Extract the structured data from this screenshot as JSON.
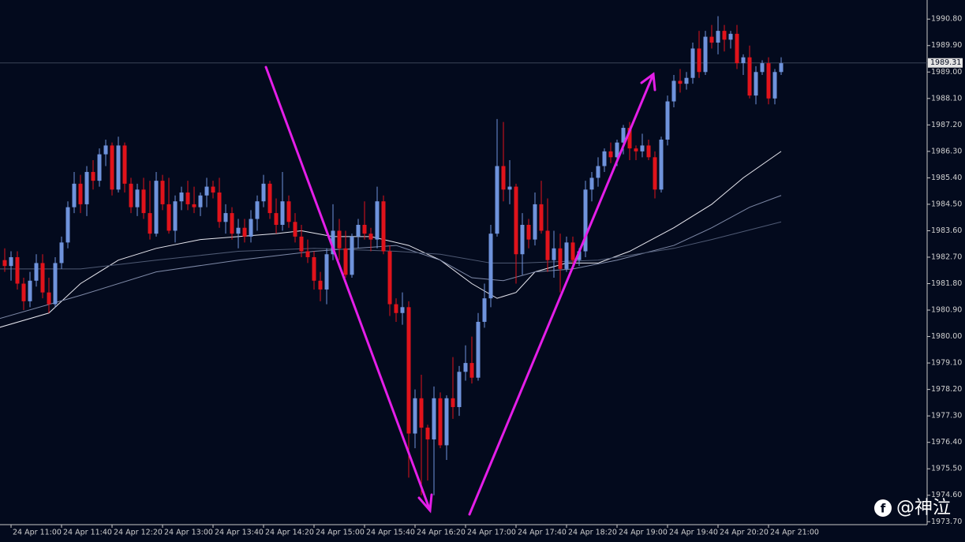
{
  "chart_data": {
    "type": "candlestick",
    "up_color": "#6f93dc",
    "down_color": "#e0131b",
    "categories": [
      null,
      "24 Apr 11:00",
      null,
      null,
      null,
      null,
      null,
      null,
      null,
      "24 Apr 11:40",
      null,
      null,
      null,
      null,
      null,
      null,
      null,
      "24 Apr 12:20",
      null,
      null,
      null,
      null,
      null,
      null,
      null,
      "24 Apr 13:00",
      null,
      null,
      null,
      null,
      null,
      null,
      null,
      "24 Apr 13:40",
      null,
      null,
      null,
      null,
      null,
      null,
      null,
      "24 Apr 14:20",
      null,
      null,
      null,
      null,
      null,
      null,
      null,
      "24 Apr 15:00",
      null,
      null,
      null,
      null,
      null,
      null,
      null,
      "24 Apr 15:40",
      null,
      null,
      null,
      null,
      null,
      null,
      null,
      "24 Apr 16:20",
      null,
      null,
      null,
      null,
      null,
      null,
      null,
      "24 Apr 17:00",
      null,
      null,
      null,
      null,
      null,
      null,
      null,
      "24 Apr 17:40",
      null,
      null,
      null,
      null,
      null,
      null,
      null,
      "24 Apr 18:20",
      null,
      null,
      null,
      null,
      null,
      null,
      null,
      "24 Apr 19:00",
      null,
      null,
      null,
      null,
      null,
      null,
      null,
      "24 Apr 19:40",
      null,
      null,
      null,
      null,
      null,
      null,
      null,
      "24 Apr 20:20",
      null,
      null,
      null,
      null,
      null,
      null,
      null,
      "24 Apr 21:00",
      null,
      null
    ],
    "open": [
      1982.6,
      1982.4,
      1982.7,
      1981.8,
      1981.2,
      1981.9,
      1982.5,
      1981.5,
      1981.1,
      1982.5,
      1983.2,
      1984.4,
      1985.2,
      1984.5,
      1985.6,
      1985.3,
      1986.2,
      1986.5,
      1985.0,
      1986.5,
      1985.2,
      1984.4,
      1985.0,
      1984.2,
      1983.5,
      1985.3,
      1984.5,
      1983.6,
      1984.6,
      1984.9,
      1984.5,
      1984.4,
      1984.8,
      1985.1,
      1984.9,
      1983.9,
      1984.2,
      1983.5,
      1983.7,
      1983.4,
      1984.0,
      1984.6,
      1985.2,
      1984.2,
      1983.8,
      1984.6,
      1983.9,
      1983.4,
      1982.9,
      1982.7,
      1981.9,
      1981.6,
      1982.8,
      1983.6,
      1983.0,
      1982.1,
      1983.4,
      1983.8,
      1983.5,
      1983.3,
      1984.6,
      1982.9,
      1981.1,
      1980.8,
      1981.0,
      1976.7,
      1977.9,
      1976.9,
      1976.5,
      1977.9,
      1976.3,
      1977.9,
      1977.6,
      1978.8,
      1979.1,
      1978.6,
      1980.5,
      1981.3,
      1983.5,
      1985.8,
      1985.0,
      1985.1,
      1982.8,
      1983.8,
      1983.3,
      1984.5,
      1983.6,
      1982.6,
      1983.0,
      1982.3,
      1983.2,
      1982.6,
      1982.9,
      1985.0,
      1985.4,
      1985.8,
      1986.3,
      1986.1,
      1986.6,
      1987.1,
      1986.4,
      1986.3,
      1986.5,
      1986.1,
      1985.0,
      1986.7,
      1988.0,
      1988.7,
      1988.6,
      1988.8,
      1989.8,
      1989.0,
      1990.2,
      1990.0,
      1990.4,
      1990.1,
      1990.3,
      1989.3,
      1989.5,
      1988.2,
      1989.0,
      1989.3,
      1988.1,
      1989.0
    ],
    "high": [
      1983.0,
      1982.9,
      1982.9,
      1982.0,
      1982.2,
      1982.8,
      1982.8,
      1982.0,
      1982.7,
      1983.4,
      1984.6,
      1985.6,
      1985.5,
      1985.8,
      1986.0,
      1986.4,
      1986.7,
      1986.6,
      1986.8,
      1986.6,
      1985.4,
      1985.2,
      1985.4,
      1985.3,
      1985.6,
      1985.5,
      1985.4,
      1984.8,
      1985.1,
      1985.3,
      1985.1,
      1984.9,
      1985.4,
      1985.3,
      1985.4,
      1984.5,
      1984.4,
      1984.0,
      1984.0,
      1984.3,
      1984.8,
      1985.5,
      1985.3,
      1984.7,
      1985.6,
      1984.8,
      1984.2,
      1983.8,
      1983.3,
      1982.9,
      1982.2,
      1983.0,
      1984.5,
      1984.0,
      1983.6,
      1983.5,
      1984.0,
      1984.6,
      1983.7,
      1985.1,
      1984.8,
      1983.1,
      1981.3,
      1981.5,
      1981.2,
      1978.2,
      1978.7,
      1977.0,
      1978.3,
      1978.1,
      1978.0,
      1979.3,
      1979.0,
      1979.7,
      1980.0,
      1980.8,
      1981.8,
      1983.8,
      1987.4,
      1987.3,
      1986.0,
      1985.2,
      1984.2,
      1984.0,
      1984.9,
      1985.3,
      1984.7,
      1983.6,
      1983.5,
      1983.4,
      1983.4,
      1983.0,
      1985.3,
      1985.6,
      1986.1,
      1986.4,
      1986.6,
      1986.7,
      1987.2,
      1987.3,
      1986.5,
      1986.9,
      1986.7,
      1986.3,
      1986.8,
      1988.2,
      1988.9,
      1989.1,
      1989.0,
      1990.0,
      1990.4,
      1990.4,
      1990.6,
      1990.9,
      1990.6,
      1990.4,
      1990.6,
      1989.6,
      1989.9,
      1989.2,
      1989.4,
      1989.5,
      1989.1,
      1989.5
    ],
    "low": [
      1982.2,
      1981.9,
      1981.6,
      1980.9,
      1981.0,
      1981.7,
      1981.3,
      1980.8,
      1981.0,
      1982.3,
      1983.0,
      1984.2,
      1984.2,
      1984.1,
      1985.0,
      1985.1,
      1985.8,
      1984.8,
      1984.9,
      1984.9,
      1984.2,
      1984.1,
      1984.0,
      1983.3,
      1983.4,
      1984.3,
      1983.5,
      1983.2,
      1984.3,
      1984.3,
      1984.2,
      1984.1,
      1984.4,
      1984.7,
      1983.7,
      1983.5,
      1983.3,
      1983.0,
      1983.2,
      1983.2,
      1983.6,
      1984.4,
      1984.0,
      1983.5,
      1983.6,
      1983.7,
      1983.2,
      1982.7,
      1982.5,
      1981.6,
      1981.2,
      1981.1,
      1982.6,
      1982.6,
      1982.0,
      1982.0,
      1983.0,
      1983.3,
      1982.9,
      1983.0,
      1982.8,
      1980.7,
      1980.5,
      1980.4,
      1975.2,
      1976.2,
      1974.6,
      1975.1,
      1974.6,
      1976.2,
      1975.8,
      1977.2,
      1977.3,
      1978.5,
      1978.4,
      1978.5,
      1980.3,
      1981.0,
      1983.4,
      1984.6,
      1984.5,
      1981.8,
      1982.1,
      1983.0,
      1983.1,
      1983.5,
      1982.2,
      1982.0,
      1981.5,
      1982.2,
      1982.3,
      1982.4,
      1982.7,
      1984.6,
      1985.1,
      1985.6,
      1985.9,
      1985.8,
      1986.2,
      1986.0,
      1986.0,
      1986.1,
      1986.0,
      1984.7,
      1984.9,
      1986.5,
      1987.8,
      1988.3,
      1988.4,
      1988.6,
      1988.8,
      1988.9,
      1989.8,
      1989.6,
      1989.7,
      1989.8,
      1989.1,
      1988.9,
      1988.1,
      1987.9,
      1988.9,
      1987.9,
      1987.9,
      1988.9
    ],
    "close": [
      1982.4,
      1982.7,
      1981.8,
      1981.2,
      1981.9,
      1982.5,
      1981.5,
      1981.1,
      1982.5,
      1983.2,
      1984.4,
      1985.2,
      1984.5,
      1985.6,
      1985.3,
      1986.2,
      1986.5,
      1985.0,
      1986.5,
      1985.2,
      1984.4,
      1985.0,
      1984.2,
      1983.5,
      1985.3,
      1984.5,
      1983.6,
      1984.6,
      1984.9,
      1984.5,
      1984.4,
      1984.8,
      1985.1,
      1984.9,
      1983.9,
      1984.2,
      1983.5,
      1983.7,
      1983.4,
      1984.0,
      1984.6,
      1985.2,
      1984.2,
      1983.8,
      1984.6,
      1983.9,
      1983.4,
      1982.9,
      1982.7,
      1981.9,
      1981.6,
      1982.8,
      1983.6,
      1983.0,
      1982.1,
      1983.4,
      1983.8,
      1983.5,
      1983.3,
      1984.6,
      1982.9,
      1981.1,
      1980.8,
      1981.0,
      1976.7,
      1977.9,
      1976.9,
      1976.5,
      1977.9,
      1976.3,
      1977.9,
      1977.6,
      1978.8,
      1979.1,
      1978.6,
      1980.5,
      1981.3,
      1983.5,
      1985.8,
      1985.0,
      1985.1,
      1982.8,
      1983.8,
      1983.3,
      1984.5,
      1983.6,
      1982.6,
      1983.0,
      1982.3,
      1983.2,
      1982.6,
      1982.9,
      1985.0,
      1985.4,
      1985.8,
      1986.3,
      1986.1,
      1986.6,
      1987.1,
      1986.4,
      1986.3,
      1986.5,
      1986.1,
      1985.0,
      1986.7,
      1988.0,
      1988.7,
      1988.6,
      1988.8,
      1989.8,
      1989.0,
      1990.2,
      1990.0,
      1990.4,
      1990.1,
      1990.3,
      1989.3,
      1989.5,
      1988.2,
      1989.0,
      1989.3,
      1988.1,
      1989.0,
      1989.3
    ],
    "lines": [
      {
        "color": "#e8e8f0",
        "x": [
          -1,
          7,
          12,
          18,
          24,
          31,
          37,
          43,
          47,
          52,
          58,
          64,
          69,
          74,
          78,
          81,
          84,
          89,
          94,
          99,
          106,
          112,
          117,
          123
        ],
        "values": [
          1980.3,
          1980.8,
          1981.8,
          1982.6,
          1983.0,
          1983.3,
          1983.4,
          1983.5,
          1983.6,
          1983.4,
          1983.4,
          1983.1,
          1982.6,
          1981.8,
          1981.3,
          1981.5,
          1982.2,
          1982.5,
          1982.5,
          1982.9,
          1983.7,
          1984.5,
          1985.4,
          1986.3
        ]
      },
      {
        "color": "#7f8aa8",
        "x": [
          -1,
          12,
          24,
          37,
          49,
          62,
          69,
          74,
          79,
          84,
          90,
          97,
          106,
          112,
          118,
          123
        ],
        "values": [
          1980.6,
          1981.4,
          1982.2,
          1982.6,
          1982.9,
          1983.1,
          1982.6,
          1982.0,
          1981.9,
          1982.2,
          1982.3,
          1982.6,
          1983.1,
          1983.7,
          1984.4,
          1984.8
        ]
      },
      {
        "color": "#4f5a74",
        "x": [
          -1,
          12,
          24,
          37,
          49,
          62,
          69,
          77,
          82,
          94,
          106,
          112,
          123
        ],
        "values": [
          1982.3,
          1982.3,
          1982.6,
          1982.9,
          1983.0,
          1982.9,
          1982.8,
          1982.5,
          1982.5,
          1982.6,
          1983.0,
          1983.3,
          1983.9
        ]
      }
    ],
    "ylim": [
      1973.6,
      1991.45
    ],
    "yticks": [
      {
        "value": 1990.8,
        "label": "1990.80"
      },
      {
        "value": 1989.9,
        "label": "1989.90"
      },
      {
        "value": 1989.0,
        "label": "1989.00"
      },
      {
        "value": 1988.1,
        "label": "1988.10"
      },
      {
        "value": 1987.2,
        "label": "1987.20"
      },
      {
        "value": 1986.3,
        "label": "1986.30"
      },
      {
        "value": 1985.4,
        "label": "1985.40"
      },
      {
        "value": 1984.5,
        "label": "1984.50"
      },
      {
        "value": 1983.6,
        "label": "1983.60"
      },
      {
        "value": 1982.7,
        "label": "1982.70"
      },
      {
        "value": 1981.8,
        "label": "1981.80"
      },
      {
        "value": 1980.9,
        "label": "1980.90"
      },
      {
        "value": 1980.0,
        "label": "1980.00"
      },
      {
        "value": 1979.1,
        "label": "1979.10"
      },
      {
        "value": 1978.2,
        "label": "1978.20"
      },
      {
        "value": 1977.3,
        "label": "1977.30"
      },
      {
        "value": 1976.4,
        "label": "1976.40"
      },
      {
        "value": 1975.5,
        "label": "1975.50"
      },
      {
        "value": 1974.6,
        "label": "1974.60"
      },
      {
        "value": 1973.7,
        "label": "1973.70"
      }
    ],
    "last_price": 1989.31,
    "watermark": "@神泣"
  }
}
